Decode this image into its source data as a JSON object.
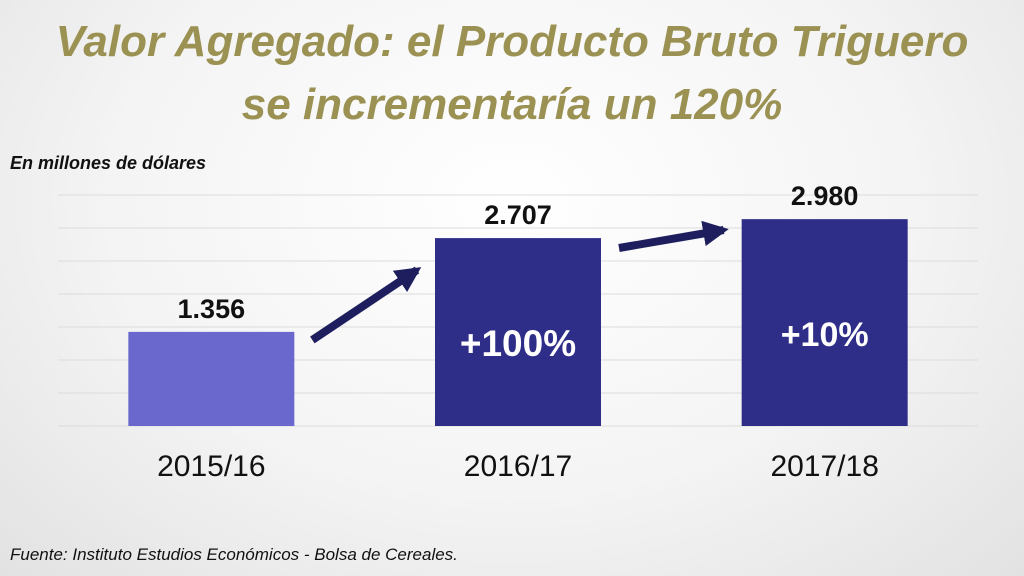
{
  "title_line1": "Valor Agregado: el Producto Bruto Triguero",
  "title_line2": "se incrementaría un 120%",
  "unit_label": "En millones de dólares",
  "source": "Fuente: Instituto Estudios Económicos - Bolsa de Cereales.",
  "colors": {
    "title": "#9a9152",
    "bar_light": "#6a68cc",
    "bar_dark": "#2e2d88",
    "arrow": "#1e1e5e"
  },
  "chart_data": {
    "type": "bar",
    "categories": [
      "2015/16",
      "2016/17",
      "2017/18"
    ],
    "values": [
      1356,
      2707,
      2980
    ],
    "value_labels": [
      "1.356",
      "2.707",
      "2.980"
    ],
    "growth_labels": [
      "",
      "+100%",
      "+10%"
    ],
    "ylim": [
      0,
      3400
    ],
    "grid": true,
    "title": "",
    "xlabel": "",
    "ylabel": ""
  }
}
